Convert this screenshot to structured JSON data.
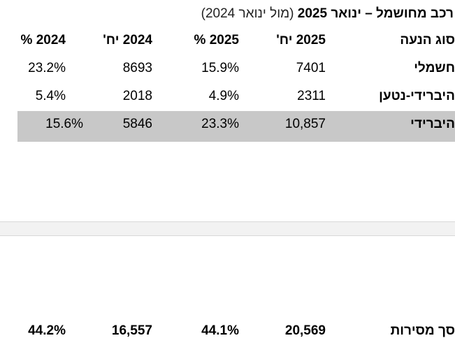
{
  "title": {
    "main": "רכב מחושמל – ינואר 2025",
    "sub": "(מול ינואר 2024)"
  },
  "table": {
    "headers": {
      "type": "סוג הנעה",
      "units_2025": "2025 יח'",
      "pct_2025": "2025 %",
      "units_2024": "2024 יח'",
      "pct_2024": "2024 %"
    },
    "rows": [
      {
        "type": "חשמלי",
        "units_2025": "7401",
        "pct_2025": "15.9%",
        "units_2024": "8693",
        "pct_2024": "23.2%"
      },
      {
        "type": "היברידי-נטען",
        "units_2025": "2311",
        "pct_2025": "4.9%",
        "units_2024": "2018",
        "pct_2024": "5.4%"
      },
      {
        "type": "היברידי",
        "units_2025": "10,857",
        "pct_2025": "23.3%",
        "units_2024": "5846",
        "pct_2024": "15.6%"
      }
    ],
    "total": {
      "type": "סך מסירות",
      "units_2025": "20,569",
      "pct_2025": "44.1%",
      "units_2024": "16,557",
      "pct_2024": "44.2%"
    }
  },
  "colors": {
    "highlight_row": "#c8c8c8",
    "divider_band": "#f2f2f2"
  }
}
